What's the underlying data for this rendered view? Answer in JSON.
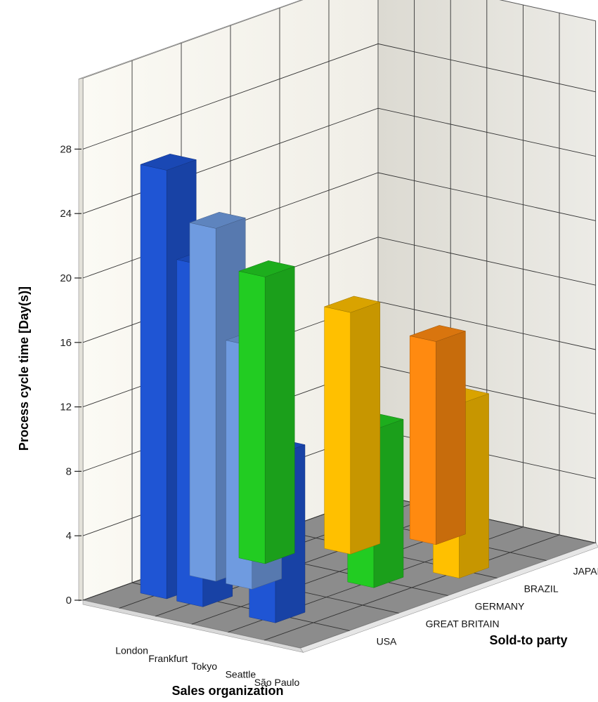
{
  "chart_data": {
    "type": "bar",
    "variant": "3d",
    "title": "",
    "ylabel": "Process cycle time [Day(s)]",
    "xlabel": "Sales organization",
    "zlabel": "Sold-to party",
    "ylim": [
      0,
      28
    ],
    "yticks": [
      0,
      4,
      8,
      12,
      16,
      20,
      24,
      28
    ],
    "grid": true,
    "categories": [
      "London",
      "Frankfurt",
      "Tokyo",
      "Seattle",
      "São Paulo"
    ],
    "series": [
      {
        "name": "JAPAN",
        "color": "#ff8a10",
        "values": [
          null,
          null,
          12.6,
          null,
          null
        ]
      },
      {
        "name": "BRAZIL",
        "color": "#ffc000",
        "values": [
          null,
          15,
          null,
          null,
          10.8
        ]
      },
      {
        "name": "GERMANY",
        "color": "#22cc22",
        "values": [
          17.8,
          null,
          null,
          9.8,
          null
        ]
      },
      {
        "name": "GREAT BRITAIN",
        "color": "#6f9be0",
        "values": [
          21.9,
          15.1,
          null,
          null,
          null
        ]
      },
      {
        "name": "USA",
        "color": "#1f55d4",
        "values": [
          26.6,
          21.2,
          null,
          10.4,
          null
        ]
      }
    ]
  }
}
